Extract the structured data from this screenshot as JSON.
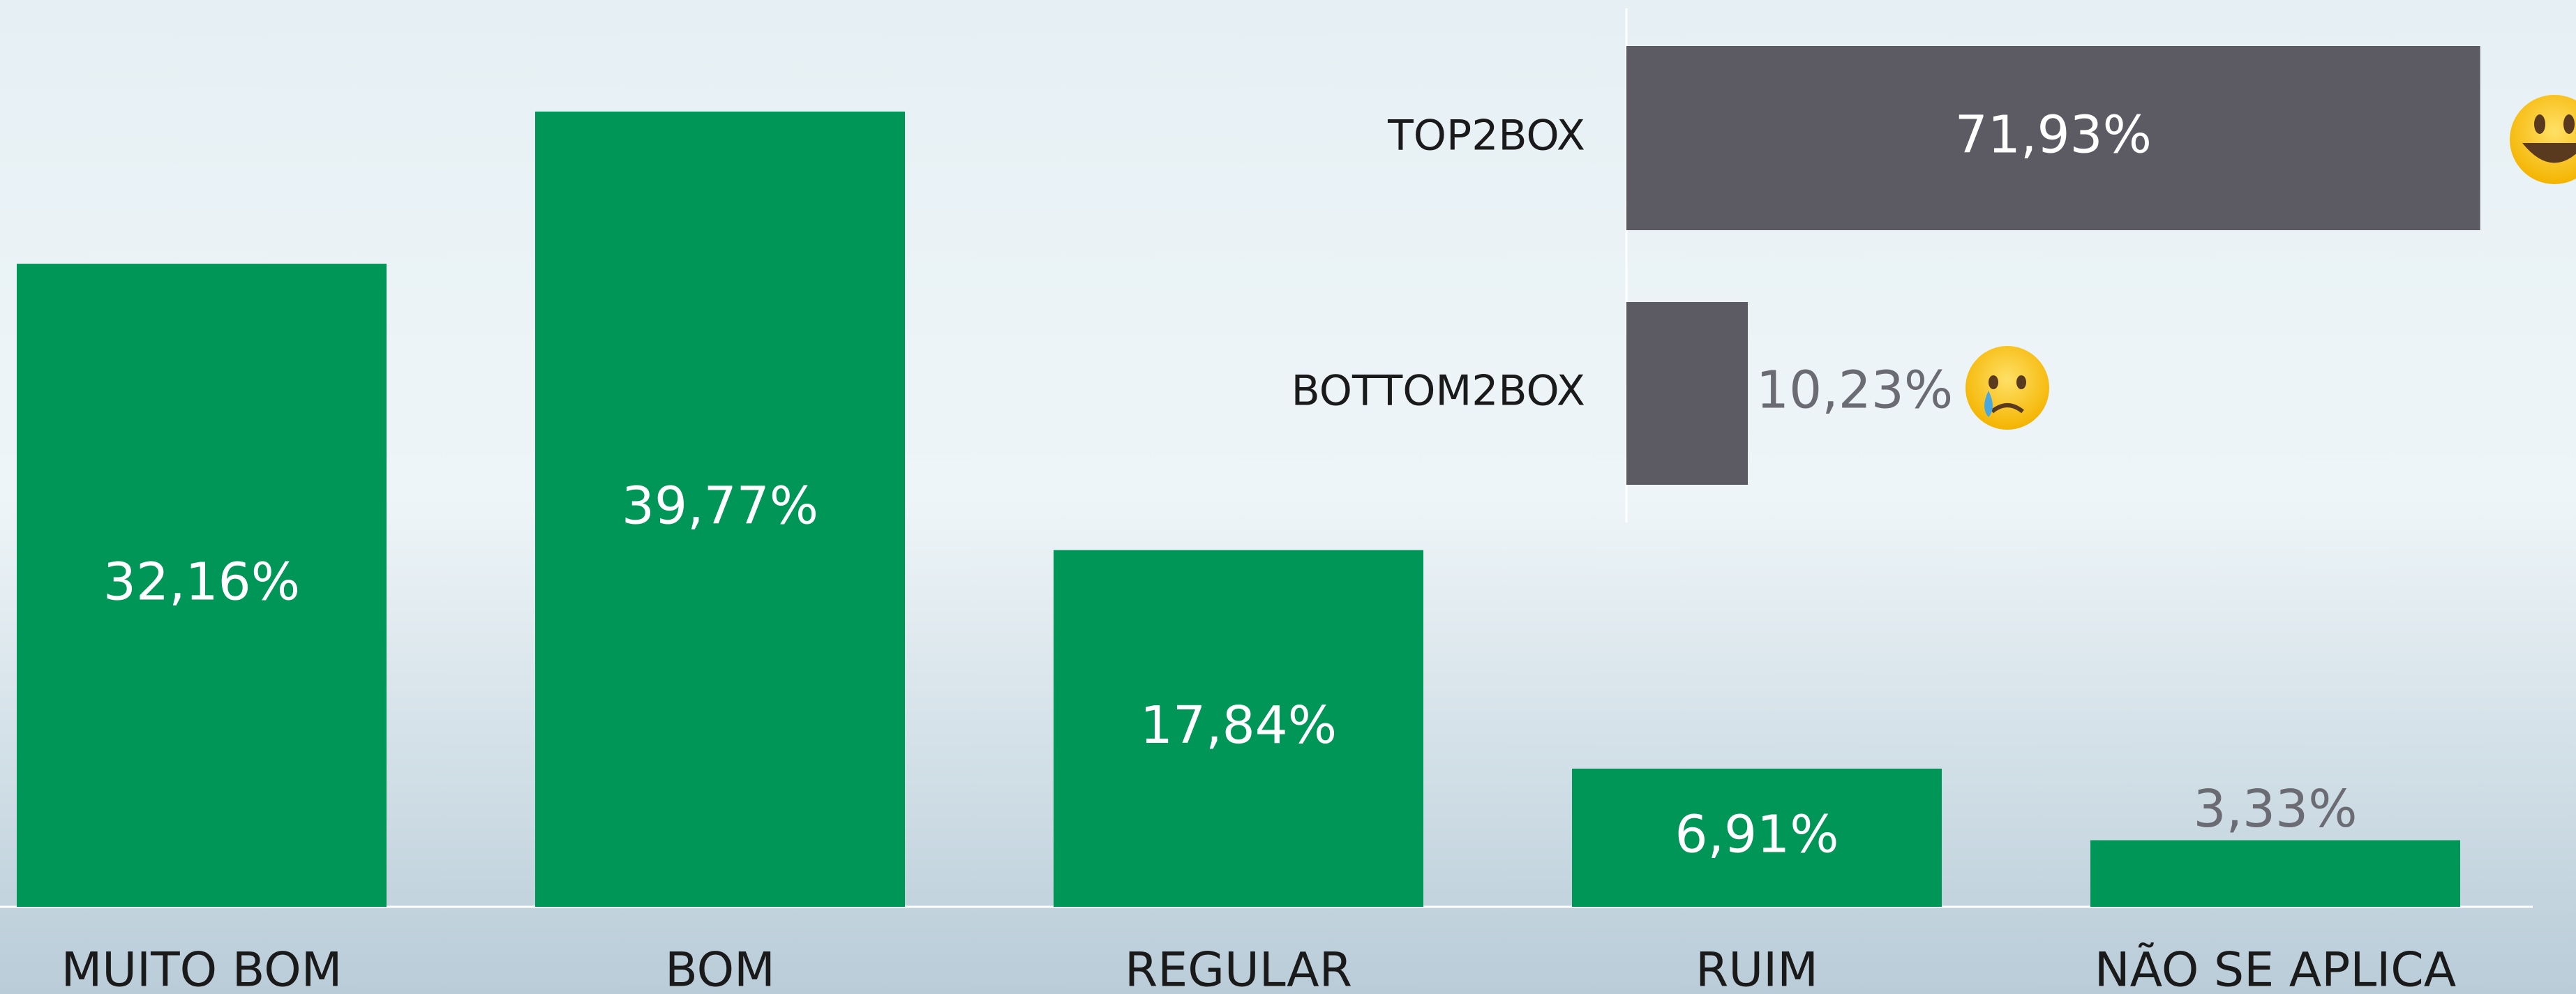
{
  "chart_data": [
    {
      "type": "bar",
      "categories": [
        "MUITO BOM",
        "BOM",
        "REGULAR",
        "RUIM",
        "NÃO SE APLICA"
      ],
      "values": [
        32.16,
        39.77,
        17.84,
        6.91,
        3.33
      ],
      "value_labels": [
        "32,16%",
        "39,77%",
        "17,84%",
        "6,91%",
        "3,33%"
      ],
      "color": "#009658",
      "ylim": [
        0,
        45
      ]
    },
    {
      "type": "hbar",
      "categories": [
        "TOP2BOX",
        "BOTTOM2BOX"
      ],
      "values": [
        71.93,
        10.23
      ],
      "value_labels": [
        "71,93%",
        "10,23%"
      ],
      "color": "#5c5b63",
      "xlim": [
        0,
        80
      ]
    }
  ]
}
